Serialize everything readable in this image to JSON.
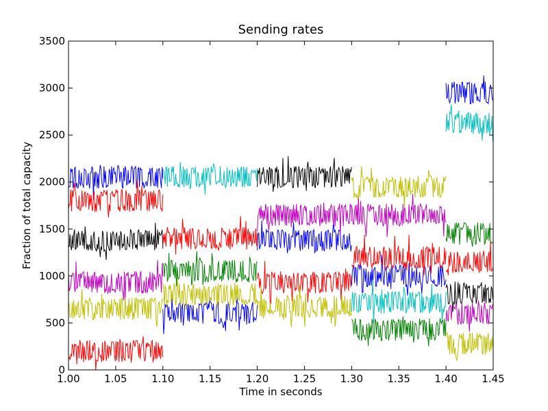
{
  "chart_data": {
    "type": "line",
    "title": "Sending rates",
    "xlabel": "Time in seconds",
    "ylabel": "Fraction of total capacity",
    "xlim": [
      1.0,
      1.45
    ],
    "ylim": [
      0,
      3500
    ],
    "xticks": [
      "1.00",
      "1.05",
      "1.10",
      "1.15",
      "1.20",
      "1.25",
      "1.30",
      "1.35",
      "1.40",
      "1.45"
    ],
    "yticks": [
      "0",
      "500",
      "1000",
      "1500",
      "2000",
      "2500",
      "3000",
      "3500"
    ],
    "grid": false,
    "legend": "none",
    "noise_amplitude": 120,
    "series": [
      {
        "color": "#0000ff",
        "segments": [
          [
            1.0,
            1.1,
            2050
          ],
          [
            1.1,
            1.2,
            600
          ],
          [
            1.2,
            1.3,
            1380
          ],
          [
            1.3,
            1.4,
            1000
          ],
          [
            1.4,
            1.45,
            2950
          ]
        ]
      },
      {
        "color": "#00bfbf",
        "segments": [
          [
            1.1,
            1.2,
            2050
          ],
          [
            1.3,
            1.4,
            720
          ],
          [
            1.4,
            1.45,
            2620
          ]
        ]
      },
      {
        "color": "#000000",
        "segments": [
          [
            1.0,
            1.1,
            1380
          ],
          [
            1.2,
            1.3,
            2050
          ],
          [
            1.4,
            1.45,
            820
          ]
        ]
      },
      {
        "color": "#bf00bf",
        "segments": [
          [
            1.0,
            1.1,
            930
          ],
          [
            1.2,
            1.3,
            1650
          ],
          [
            1.3,
            1.4,
            1650
          ],
          [
            1.4,
            1.45,
            600
          ]
        ]
      },
      {
        "color": "#ff0000",
        "segments": [
          [
            1.0,
            1.1,
            1800
          ],
          [
            1.0,
            1.1,
            200
          ],
          [
            1.1,
            1.2,
            1400
          ],
          [
            1.2,
            1.3,
            930
          ],
          [
            1.3,
            1.4,
            1200
          ],
          [
            1.4,
            1.45,
            1150
          ]
        ]
      },
      {
        "color": "#bfbf00",
        "segments": [
          [
            1.0,
            1.1,
            650
          ],
          [
            1.1,
            1.2,
            800
          ],
          [
            1.2,
            1.3,
            680
          ],
          [
            1.3,
            1.4,
            1950
          ],
          [
            1.4,
            1.45,
            280
          ]
        ]
      },
      {
        "color": "#008000",
        "segments": [
          [
            1.1,
            1.2,
            1050
          ],
          [
            1.3,
            1.4,
            430
          ],
          [
            1.4,
            1.45,
            1450
          ]
        ]
      }
    ]
  }
}
